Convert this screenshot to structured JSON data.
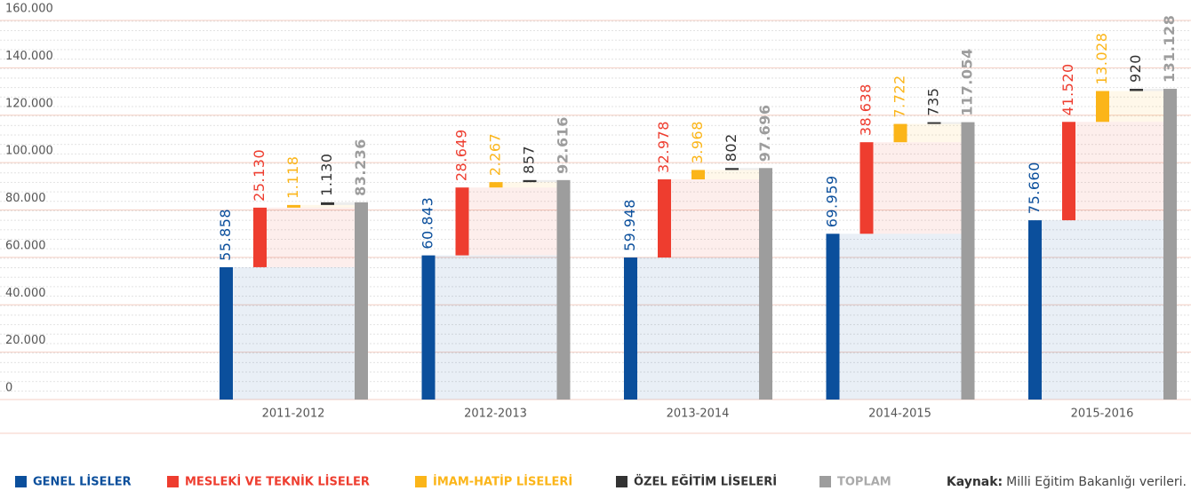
{
  "chart_data": {
    "type": "waterfall-bar",
    "categories": [
      "2011-2012",
      "2012-2013",
      "2013-2014",
      "2014-2015",
      "2015-2016"
    ],
    "series": [
      {
        "name": "GENEL LİSELER",
        "color": "#0b4f9c",
        "values": [
          55858,
          60843,
          59948,
          69959,
          75660
        ],
        "value_labels": [
          "55.858",
          "60.843",
          "59.948",
          "69.959",
          "75.660"
        ]
      },
      {
        "name": "MESLEKİ VE TEKNİK LİSELER",
        "color": "#ee3d2f",
        "values": [
          25130,
          28649,
          32978,
          38638,
          41520
        ],
        "value_labels": [
          "25.130",
          "28.649",
          "32.978",
          "38.638",
          "41.520"
        ]
      },
      {
        "name": "İMAM-HATİP LİSELERİ",
        "color": "#fbb519",
        "values": [
          1118,
          2267,
          3968,
          7722,
          13028
        ],
        "value_labels": [
          "1.118",
          "2.267",
          "3.968",
          "7.722",
          "13.028"
        ]
      },
      {
        "name": "ÖZEL EĞİTİM LİSELERİ",
        "color": "#333333",
        "values": [
          1130,
          857,
          802,
          735,
          920
        ],
        "value_labels": [
          "1.130",
          "857",
          "802",
          "735",
          "920"
        ]
      },
      {
        "name": "TOPLAM",
        "color": "#9d9d9d",
        "values": [
          83236,
          92616,
          97696,
          117054,
          131128
        ],
        "value_labels": [
          "83.236",
          "92.616",
          "97.696",
          "117.054",
          "131.128"
        ],
        "total": true
      }
    ],
    "ylim": [
      0,
      160000
    ],
    "yticks": [
      0,
      {
        "value": 20000,
        "label": "20.000"
      },
      {
        "value": 40000,
        "label": "40.000"
      },
      {
        "value": 60000,
        "label": "60.000"
      },
      {
        "value": 80000,
        "label": "80.000"
      },
      {
        "value": 100000,
        "label": "100.000"
      },
      {
        "value": 120000,
        "label": "120.000"
      },
      {
        "value": 140000,
        "label": "140.000"
      },
      {
        "value": 160000,
        "label": "160.000"
      }
    ],
    "grid": true,
    "source_label": "Kaynak:",
    "source": "Milli Eğitim Bakanlığı verileri."
  }
}
